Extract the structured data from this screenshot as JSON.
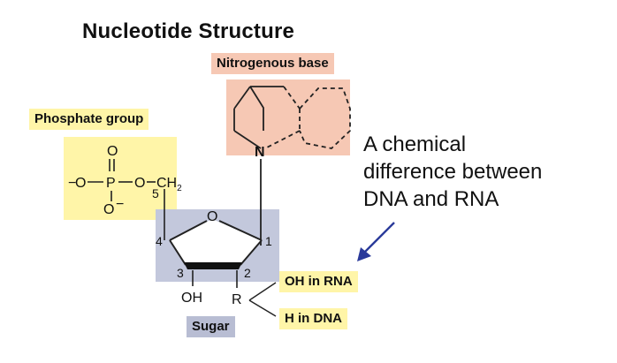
{
  "title": "Nucleotide Structure",
  "labels": {
    "nitrogenous_base": "Nitrogenous base",
    "phosphate_group": "Phosphate group",
    "sugar": "Sugar",
    "oh_in_rna": "OH in RNA",
    "h_in_dna": "H in DNA"
  },
  "annotation": {
    "line1": "A chemical",
    "line2": "difference between",
    "line3": "DNA and RNA"
  },
  "phosphate": {
    "o_top": "O",
    "o_left": "O",
    "p": "P",
    "o_right": "O",
    "o_bottom": "O",
    "ch2": "CH",
    "ch2_sub": "2",
    "charge": "−"
  },
  "sugar_ring": {
    "ring_o": "O",
    "n": "N",
    "c1": "1",
    "c2": "2",
    "c3": "3",
    "c4": "4",
    "c5": "5",
    "oh": "OH",
    "r": "R"
  },
  "colors": {
    "base_highlight": "#f6c8b4",
    "phosphate_highlight": "#fff5a8",
    "sugar_highlight": "#b8bdd3",
    "arrow": "#2a3a9a"
  }
}
